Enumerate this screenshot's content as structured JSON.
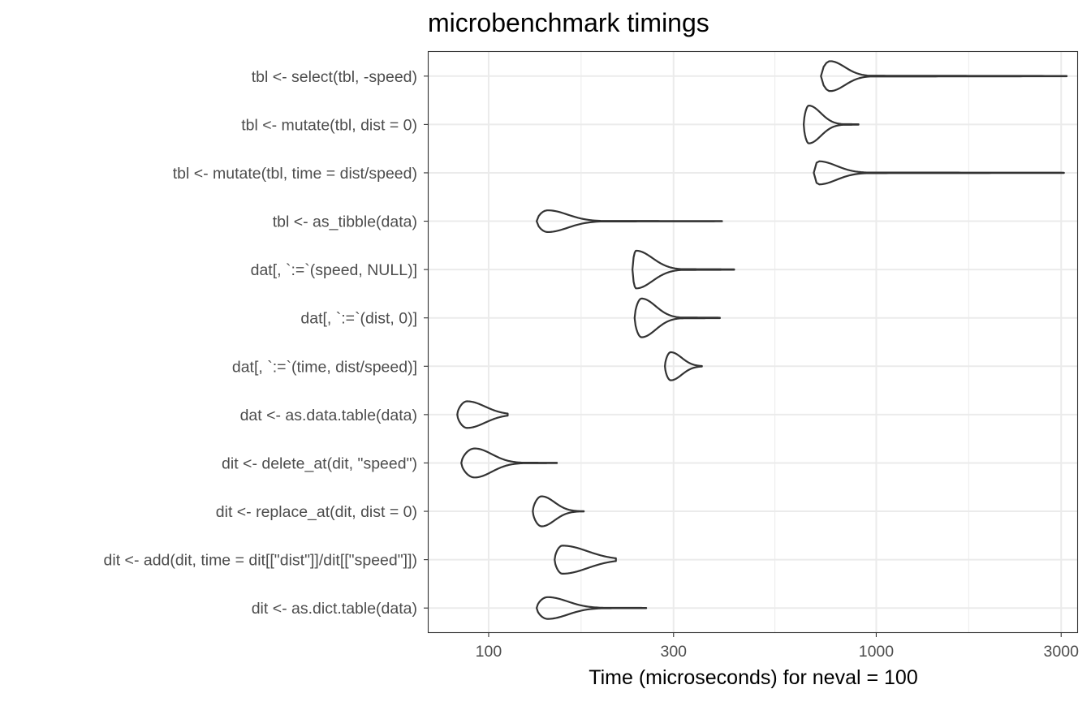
{
  "chart_data": {
    "type": "violin",
    "title": "microbenchmark timings",
    "xlabel": "Time (microseconds) for neval = 100",
    "ylabel": "",
    "x_scale": "log10",
    "xlim": [
      70,
      3300
    ],
    "x_ticks": [
      100,
      300,
      1000,
      3000
    ],
    "x_tick_labels": [
      "100",
      "300",
      "1000",
      "3000"
    ],
    "grid": true,
    "categories": [
      "tbl <- select(tbl, -speed)",
      "tbl <- mutate(tbl, dist = 0)",
      "tbl <- mutate(tbl, time = dist/speed)",
      "tbl <- as_tibble(data)",
      "dat[, `:=`(speed, NULL)]",
      "dat[, `:=`(dist, 0)]",
      "dat[, `:=`(time, dist/speed)]",
      "dat <- as.data.table(data)",
      "dit <- delete_at(dit, \"speed\")",
      "dit <- replace_at(dit, dist = 0)",
      "dit <- add(dit, time = dit[[\"dist\"]]/dit[[\"speed\"]])",
      "dit <- as.dict.table(data)"
    ],
    "series": [
      {
        "min": 720,
        "mode": 760,
        "q3": 830,
        "max": 3100,
        "spread": 0.62
      },
      {
        "min": 650,
        "mode": 670,
        "q3": 720,
        "max": 900,
        "spread": 0.78
      },
      {
        "min": 690,
        "mode": 710,
        "q3": 790,
        "max": 3050,
        "spread": 0.48
      },
      {
        "min": 133,
        "mode": 142,
        "q3": 160,
        "max": 400,
        "spread": 0.45
      },
      {
        "min": 235,
        "mode": 240,
        "q3": 265,
        "max": 430,
        "spread": 0.78
      },
      {
        "min": 238,
        "mode": 248,
        "q3": 270,
        "max": 395,
        "spread": 0.8
      },
      {
        "min": 285,
        "mode": 295,
        "q3": 315,
        "max": 355,
        "spread": 0.58
      },
      {
        "min": 83,
        "mode": 88,
        "q3": 98,
        "max": 112,
        "spread": 0.55
      },
      {
        "min": 85,
        "mode": 92,
        "q3": 102,
        "max": 150,
        "spread": 0.6
      },
      {
        "min": 130,
        "mode": 137,
        "q3": 148,
        "max": 176,
        "spread": 0.62
      },
      {
        "min": 148,
        "mode": 155,
        "q3": 180,
        "max": 213,
        "spread": 0.58
      },
      {
        "min": 133,
        "mode": 142,
        "q3": 160,
        "max": 255,
        "spread": 0.45
      }
    ]
  }
}
